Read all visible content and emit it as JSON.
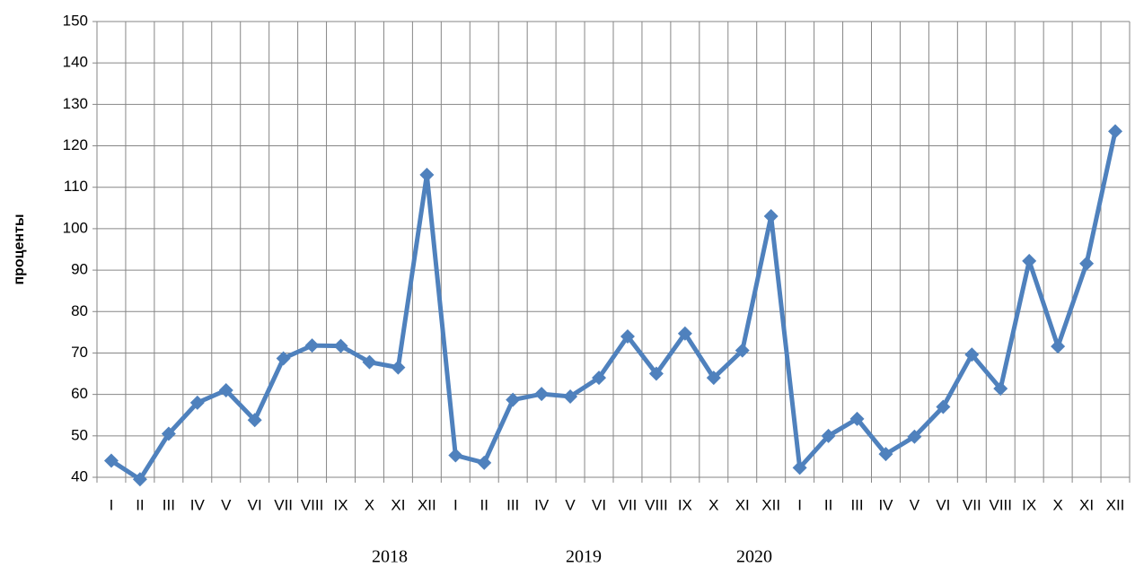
{
  "chart_data": {
    "type": "line",
    "y_label": "проценты",
    "categories": [
      "I",
      "II",
      "III",
      "IV",
      "V",
      "VI",
      "VII",
      "VIII",
      "IX",
      "X",
      "XI",
      "XII",
      "I",
      "II",
      "III",
      "IV",
      "V",
      "VI",
      "VII",
      "VIII",
      "IX",
      "X",
      "XI",
      "XII",
      "I",
      "II",
      "III",
      "IV",
      "V",
      "VI",
      "VII",
      "VIII",
      "IX",
      "X",
      "XI",
      "XII"
    ],
    "series": [
      {
        "name": "проценты",
        "color": "#4f81bd",
        "values": [
          44,
          39.5,
          50.5,
          58,
          61,
          53.8,
          68.7,
          71.8,
          71.7,
          67.8,
          66.5,
          113,
          45.3,
          43.5,
          58.7,
          60.1,
          59.5,
          64,
          74,
          65,
          74.7,
          64,
          70.6,
          103,
          42.3,
          50,
          54.1,
          45.6,
          49.8,
          57,
          69.6,
          61.4,
          92.2,
          71.6,
          91.6,
          123.5
        ]
      }
    ],
    "annotations": [
      "2018",
      "2019",
      "2020"
    ],
    "ylim": [
      40,
      150
    ],
    "yticks": [
      40,
      50,
      60,
      70,
      80,
      90,
      100,
      110,
      120,
      130,
      140,
      150
    ],
    "grid": true
  }
}
